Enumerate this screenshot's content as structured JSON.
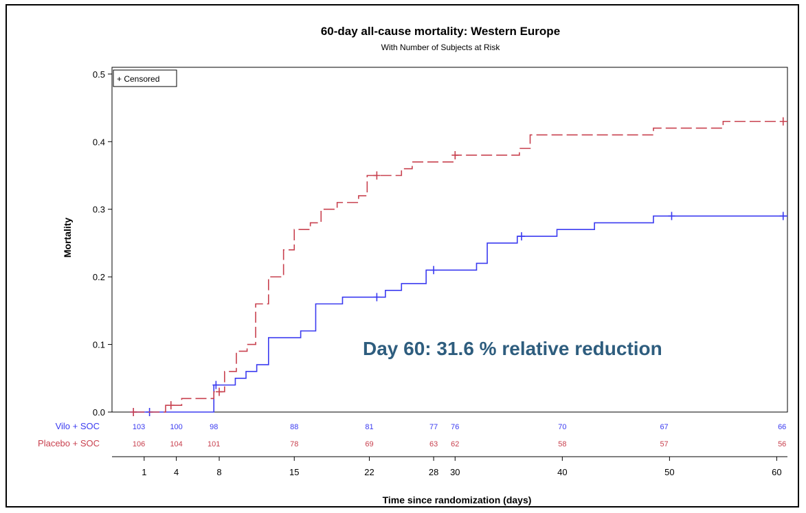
{
  "chart_data": {
    "type": "line",
    "title": "60-day all-cause mortality: Western Europe",
    "subtitle": "With Number of Subjects at Risk",
    "xlabel": "Time since randomization (days)",
    "ylabel": "Mortality",
    "xlim": [
      -2,
      61
    ],
    "ylim": [
      0,
      0.51
    ],
    "x_ticks": [
      1,
      4,
      8,
      15,
      22,
      28,
      30,
      40,
      50,
      60
    ],
    "x_tick_labels": [
      "1",
      "4",
      "8",
      "15",
      "22",
      "28",
      "30",
      "40",
      "50",
      "60"
    ],
    "y_ticks": [
      0,
      0.1,
      0.2,
      0.3,
      0.4,
      0.5
    ],
    "y_tick_labels": [
      "0.0",
      "0.1",
      "0.2",
      "0.3",
      "0.4",
      "0.5"
    ],
    "legend": {
      "entries": [
        "+ Censored"
      ],
      "position": "top-left"
    },
    "annotation": "Day 60: 31.6 % relative reduction",
    "colors": {
      "vilo": "#3a3af0",
      "placebo": "#c8404e",
      "annotation": "#2e5d7e"
    },
    "series": [
      {
        "name": "Vilo + SOC",
        "style": "solid",
        "steps": [
          [
            0,
            0
          ],
          [
            7.5,
            0.04
          ],
          [
            9.5,
            0.05
          ],
          [
            10.5,
            0.06
          ],
          [
            11.5,
            0.07
          ],
          [
            12.6,
            0.11
          ],
          [
            15.6,
            0.12
          ],
          [
            17,
            0.16
          ],
          [
            19.5,
            0.17
          ],
          [
            23.5,
            0.18
          ],
          [
            25,
            0.19
          ],
          [
            27.3,
            0.21
          ],
          [
            32,
            0.22
          ],
          [
            33,
            0.25
          ],
          [
            35.8,
            0.26
          ],
          [
            39.5,
            0.27
          ],
          [
            43,
            0.28
          ],
          [
            48.5,
            0.29
          ],
          [
            61,
            0.29
          ]
        ],
        "censored": [
          [
            0,
            0
          ],
          [
            1.5,
            0
          ],
          [
            7.7,
            0.04
          ],
          [
            22.7,
            0.17
          ],
          [
            28,
            0.21
          ],
          [
            36.2,
            0.26
          ],
          [
            50.2,
            0.29
          ],
          [
            60.6,
            0.29
          ]
        ],
        "at_risk": [
          103,
          100,
          98,
          88,
          81,
          77,
          76,
          70,
          67,
          66
        ]
      },
      {
        "name": "Placebo + SOC",
        "style": "dashed",
        "steps": [
          [
            0,
            0
          ],
          [
            3,
            0.01
          ],
          [
            4.5,
            0.02
          ],
          [
            7.5,
            0.03
          ],
          [
            8.5,
            0.06
          ],
          [
            9.6,
            0.09
          ],
          [
            10.6,
            0.1
          ],
          [
            11.4,
            0.16
          ],
          [
            12.6,
            0.2
          ],
          [
            14,
            0.24
          ],
          [
            15,
            0.27
          ],
          [
            16.5,
            0.28
          ],
          [
            17.5,
            0.3
          ],
          [
            19,
            0.31
          ],
          [
            21,
            0.32
          ],
          [
            21.8,
            0.35
          ],
          [
            25,
            0.36
          ],
          [
            26,
            0.37
          ],
          [
            30,
            0.38
          ],
          [
            36,
            0.39
          ],
          [
            37,
            0.41
          ],
          [
            48.5,
            0.42
          ],
          [
            55,
            0.43
          ],
          [
            61,
            0.43
          ]
        ],
        "censored": [
          [
            0,
            0
          ],
          [
            3.5,
            0.01
          ],
          [
            8,
            0.03
          ],
          [
            22.7,
            0.35
          ],
          [
            30,
            0.38
          ],
          [
            60.6,
            0.43
          ]
        ],
        "at_risk": [
          106,
          104,
          101,
          78,
          69,
          63,
          62,
          58,
          57,
          56
        ]
      }
    ],
    "at_risk_x": [
      0.5,
      4,
      7.5,
      15,
      22,
      28,
      30,
      40,
      49.5,
      60.5
    ]
  }
}
